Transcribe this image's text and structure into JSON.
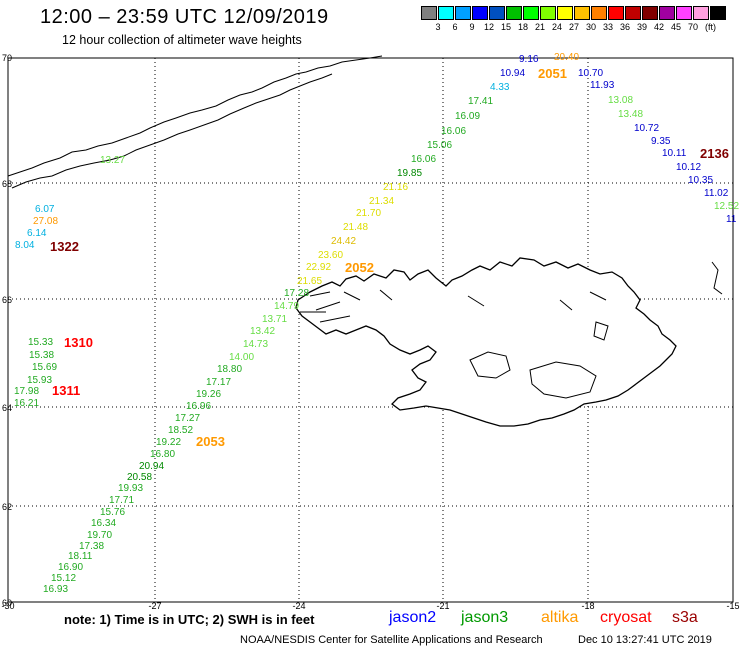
{
  "header": {
    "title": "12:00  –  23:59  UTC  12/09/2019",
    "subtitle": "12 hour collection of altimeter wave heights"
  },
  "legend": {
    "colors": [
      "#808080",
      "#00ffff",
      "#00a0ff",
      "#0000ff",
      "#0050c0",
      "#00c000",
      "#00ff00",
      "#80ff00",
      "#ffff00",
      "#ffc000",
      "#ff8000",
      "#ff0000",
      "#c00000",
      "#800000",
      "#a000a0",
      "#ff40ff",
      "#ffa0e0",
      "#000000"
    ],
    "labels": [
      "3",
      "6",
      "9",
      "12",
      "15",
      "18",
      "21",
      "24",
      "27",
      "30",
      "33",
      "36",
      "39",
      "42",
      "45",
      "70"
    ],
    "unit": "(ft)"
  },
  "map": {
    "lat_labels": [
      "70",
      "68",
      "66",
      "64",
      "62",
      "60"
    ],
    "lon_labels": [
      "-30",
      "-27",
      "-24",
      "-21",
      "-18",
      "-15"
    ],
    "observations": [
      {
        "v": "9.16",
        "c": "#0000cc"
      },
      {
        "v": "20.40",
        "c": "#ff9900"
      },
      {
        "v": "10.94",
        "c": "#0000cc"
      },
      {
        "v": "10.70",
        "c": "#0000cc"
      },
      {
        "v": "4.33",
        "c": "#00b0e0"
      },
      {
        "v": "11.93",
        "c": "#0000cc"
      },
      {
        "v": "17.41",
        "c": "#22aa22"
      },
      {
        "v": "13.08",
        "c": "#66dd44"
      },
      {
        "v": "16.09",
        "c": "#22aa22"
      },
      {
        "v": "13.48",
        "c": "#66dd44"
      },
      {
        "v": "16.06",
        "c": "#22aa22"
      },
      {
        "v": "10.72",
        "c": "#0000cc"
      },
      {
        "v": "15.06",
        "c": "#22aa22"
      },
      {
        "v": "9.35",
        "c": "#0000cc"
      },
      {
        "v": "16.06",
        "c": "#22aa22"
      },
      {
        "v": "10.11",
        "c": "#0000cc"
      },
      {
        "v": "19.85",
        "c": "#008800"
      },
      {
        "v": "10.12",
        "c": "#0000cc"
      },
      {
        "v": "21.16",
        "c": "#dddd00"
      },
      {
        "v": "10.35",
        "c": "#0000cc"
      },
      {
        "v": "21.34",
        "c": "#dddd00"
      },
      {
        "v": "11.02",
        "c": "#0000cc"
      },
      {
        "v": "21.70",
        "c": "#dddd00"
      },
      {
        "v": "12.52",
        "c": "#66dd44"
      },
      {
        "v": "21.48",
        "c": "#dddd00"
      },
      {
        "v": "11",
        "c": "#0000cc"
      },
      {
        "v": "24.42",
        "c": "#ddbb00"
      },
      {
        "v": "23.60",
        "c": "#dddd00"
      },
      {
        "v": "22.92",
        "c": "#dddd00"
      },
      {
        "v": "21.65",
        "c": "#dddd00"
      },
      {
        "v": "17.28",
        "c": "#22aa22"
      },
      {
        "v": "14.79",
        "c": "#66dd44"
      },
      {
        "v": "13.71",
        "c": "#66dd44"
      },
      {
        "v": "13.42",
        "c": "#66dd44"
      },
      {
        "v": "14.73",
        "c": "#66dd44"
      },
      {
        "v": "14.00",
        "c": "#66dd44"
      },
      {
        "v": "18.80",
        "c": "#22aa22"
      },
      {
        "v": "17.17",
        "c": "#22aa22"
      },
      {
        "v": "19.26",
        "c": "#22aa22"
      },
      {
        "v": "16.96",
        "c": "#22aa22"
      },
      {
        "v": "17.27",
        "c": "#22aa22"
      },
      {
        "v": "18.52",
        "c": "#22aa22"
      },
      {
        "v": "19.22",
        "c": "#22aa22"
      },
      {
        "v": "16.80",
        "c": "#22aa22"
      },
      {
        "v": "20.94",
        "c": "#008800"
      },
      {
        "v": "20.58",
        "c": "#008800"
      },
      {
        "v": "19.93",
        "c": "#22aa22"
      },
      {
        "v": "17.71",
        "c": "#22aa22"
      },
      {
        "v": "15.76",
        "c": "#22aa22"
      },
      {
        "v": "16.34",
        "c": "#22aa22"
      },
      {
        "v": "19.70",
        "c": "#22aa22"
      },
      {
        "v": "17.38",
        "c": "#22aa22"
      },
      {
        "v": "18.11",
        "c": "#22aa22"
      },
      {
        "v": "16.90",
        "c": "#22aa22"
      },
      {
        "v": "15.12",
        "c": "#22aa22"
      },
      {
        "v": "16.93",
        "c": "#22aa22"
      },
      {
        "v": "6.07",
        "c": "#00b0e0"
      },
      {
        "v": "27.08",
        "c": "#ff9900"
      },
      {
        "v": "6.14",
        "c": "#00b0e0"
      },
      {
        "v": "8.04",
        "c": "#00b0e0"
      },
      {
        "v": "15.33",
        "c": "#22aa22"
      },
      {
        "v": "15.38",
        "c": "#22aa22"
      },
      {
        "v": "15.69",
        "c": "#22aa22"
      },
      {
        "v": "15.93",
        "c": "#22aa22"
      },
      {
        "v": "17.98",
        "c": "#22aa22"
      },
      {
        "v": "16.21",
        "c": "#22aa22"
      },
      {
        "v": "13.27",
        "c": "#66dd44"
      }
    ],
    "time_labels": [
      {
        "v": "2051",
        "c": "#ff9900"
      },
      {
        "v": "2136",
        "c": "#800000"
      },
      {
        "v": "2052",
        "c": "#ff9900"
      },
      {
        "v": "1322",
        "c": "#800000"
      },
      {
        "v": "1310",
        "c": "#ff0000"
      },
      {
        "v": "1311",
        "c": "#ff0000"
      },
      {
        "v": "2053",
        "c": "#ff9900"
      }
    ]
  },
  "footer": {
    "note": "note:  1) Time is in UTC;  2) SWH is in feet",
    "satellites": [
      {
        "name": "jason2",
        "color": "#0000ff"
      },
      {
        "name": "jason3",
        "color": "#009900"
      },
      {
        "name": "altika",
        "color": "#ff9900"
      },
      {
        "name": "cryosat",
        "color": "#ff0000"
      },
      {
        "name": "s3a",
        "color": "#990000"
      }
    ],
    "credit": "NOAA/NESDIS Center for Satellite Applications and Research",
    "timestamp": "Dec 10 13:27:41 UTC 2019"
  }
}
